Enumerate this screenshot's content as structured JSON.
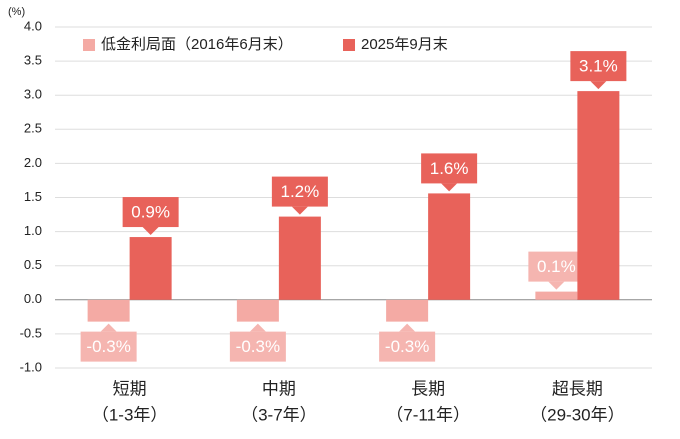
{
  "chart_data": {
    "type": "bar",
    "unit_label": "(%)",
    "categories": [
      [
        "短期",
        "（1-3年）"
      ],
      [
        "中期",
        "（3-7年）"
      ],
      [
        "長期",
        "（7-11年）"
      ],
      [
        "超長期",
        "（29-30年）"
      ]
    ],
    "series": [
      {
        "name": "低金利局面（2016年6月末）",
        "color": "#f4aaa4",
        "label_color": "#f5b5b0",
        "values": [
          -0.32,
          -0.32,
          -0.32,
          0.12
        ],
        "value_labels": [
          "-0.3%",
          "-0.3%",
          "-0.3%",
          "0.1%"
        ]
      },
      {
        "name": "2025年9月末",
        "color": "#e8625a",
        "label_color": "#e8625a",
        "values": [
          0.92,
          1.22,
          1.56,
          3.06
        ],
        "value_labels": [
          "0.9%",
          "1.2%",
          "1.6%",
          "3.1%"
        ]
      }
    ],
    "ylim": [
      -1,
      4
    ],
    "yticks": [
      {
        "value": -1,
        "label": "-1.0"
      },
      -0.5,
      {
        "value": 0,
        "label": "0.0"
      },
      0.5,
      {
        "value": 1,
        "label": "1.0"
      },
      1.5,
      {
        "value": 2,
        "label": "2.0"
      },
      2.5,
      {
        "value": 3,
        "label": "3.0"
      },
      3.5,
      {
        "value": 4,
        "label": "4.0"
      }
    ],
    "grid": true,
    "legend": "top"
  }
}
